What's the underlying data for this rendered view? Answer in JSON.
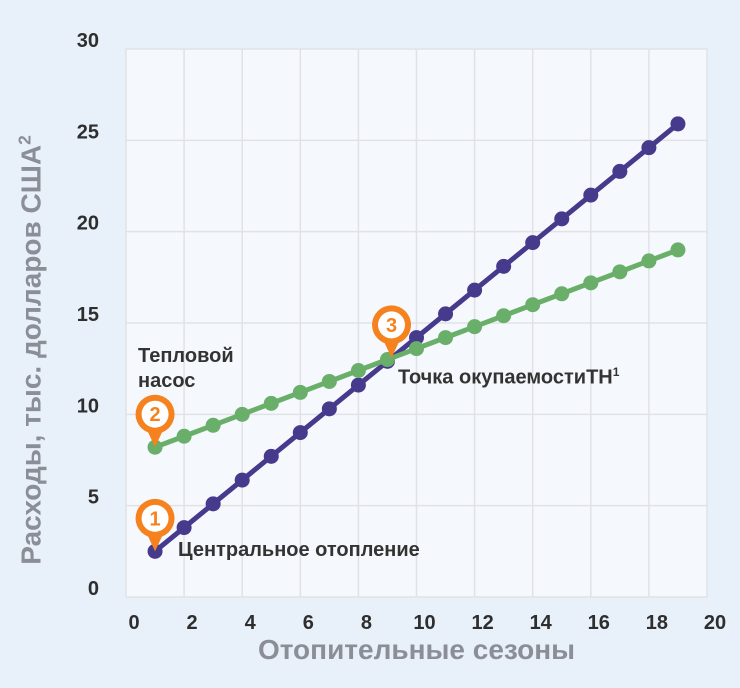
{
  "colors": {
    "page_bg": "#E8F0FA",
    "plot_bg": "#F5F8FC",
    "grid": "#E0E2E6",
    "tick_text": "#2E2E2E",
    "axis_title_text": "#8B8E96",
    "annotation_text": "#333333",
    "central_heating": "#453A8C",
    "heat_pump": "#69AF69",
    "marker_orange": "#F5821E",
    "marker_inner": "#FFFFFF"
  },
  "chart_data": {
    "type": "line",
    "xlabel": "Отопительные сезоны",
    "ylabel": "Расходы, тыс. долларов США",
    "ylabel_superscript": "2",
    "xlim": [
      0,
      20
    ],
    "ylim": [
      0,
      30
    ],
    "x_ticks": [
      0,
      2,
      4,
      6,
      8,
      10,
      12,
      14,
      16,
      18,
      20
    ],
    "y_ticks": [
      0,
      5,
      10,
      15,
      20,
      25,
      30
    ],
    "grid": true,
    "legend_position": "inline-annotations",
    "x": [
      1,
      2,
      3,
      4,
      5,
      6,
      7,
      8,
      9,
      10,
      11,
      12,
      13,
      14,
      15,
      16,
      17,
      18,
      19
    ],
    "series": [
      {
        "id": "central-heating",
        "name": "Центральное отопление",
        "color": "#453A8C",
        "values": [
          2.5,
          3.8,
          5.1,
          6.4,
          7.7,
          9.0,
          10.3,
          11.6,
          12.9,
          14.2,
          15.5,
          16.8,
          18.1,
          19.4,
          20.7,
          22.0,
          23.3,
          24.6,
          25.9
        ]
      },
      {
        "id": "heat-pump",
        "name": "Тепловой насос",
        "color": "#69AF69",
        "values": [
          8.2,
          8.8,
          9.4,
          10.0,
          10.6,
          11.2,
          11.8,
          12.4,
          13.0,
          13.6,
          14.2,
          14.8,
          15.4,
          16.0,
          16.6,
          17.2,
          17.8,
          18.4,
          19.0
        ]
      }
    ],
    "markers": [
      {
        "label": "1",
        "x": 1,
        "y": 2.5
      },
      {
        "label": "2",
        "x": 1,
        "y": 8.2
      },
      {
        "label": "3",
        "x": 9.14,
        "y": 13.09
      }
    ]
  },
  "annotations": {
    "heat_pump_label": "Тепловой насос",
    "central_heating_label": "Центральное отопление",
    "payback_label": "Точка окупаемостиТН",
    "payback_superscript": "1"
  }
}
